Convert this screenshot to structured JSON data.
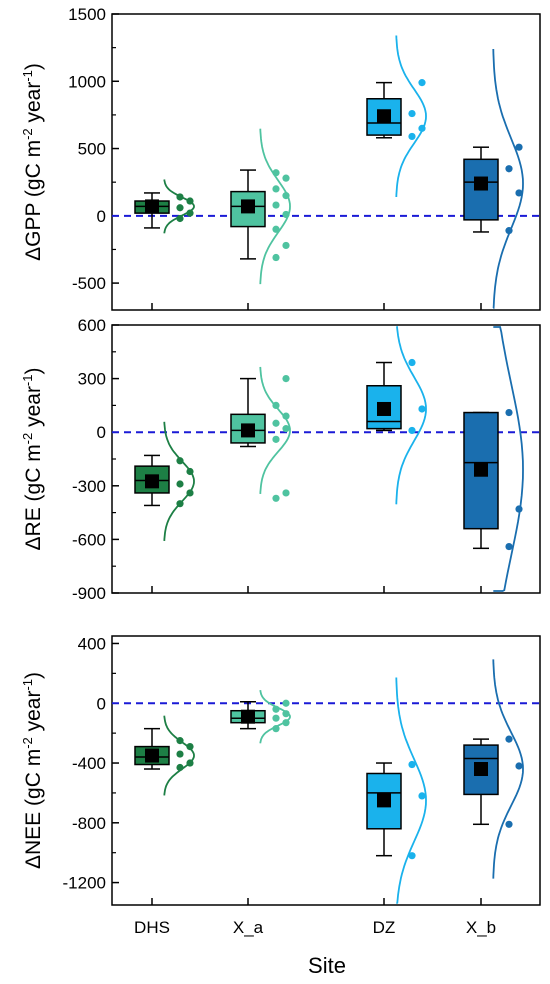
{
  "chart_data": {
    "type": "box",
    "xlabel": "Site",
    "categories": [
      "DHS",
      "X_a",
      "DZ",
      "X_b"
    ],
    "colors": {
      "DHS": {
        "fill": "#1d7f45",
        "line": "#1d7f45"
      },
      "X_a": {
        "fill": "#4fc3a0",
        "line": "#4fc3a0"
      },
      "DZ": {
        "fill": "#1ab2ec",
        "line": "#1ab2ec"
      },
      "X_b": {
        "fill": "#1a6eaf",
        "line": "#1a6eaf"
      }
    },
    "reference_line": {
      "y": 0,
      "style": "dashed",
      "color": "#1a1ad6"
    },
    "panels": [
      {
        "ylabel_parts": [
          "ΔGPP (gC m",
          "-2",
          " year",
          "-1",
          ")"
        ],
        "ylim": [
          -700,
          1500
        ],
        "yticks": [
          -500,
          0,
          500,
          1000,
          1500
        ],
        "ytick_labels": [
          "-500",
          "0",
          "500",
          "1000",
          "1500"
        ],
        "boxes": [
          {
            "site": "DHS",
            "whisker_low": -90,
            "q1": 20,
            "median": 70,
            "q3": 110,
            "whisker_high": 170,
            "mean": 70,
            "points": [
              -20,
              20,
              60,
              110,
              140
            ]
          },
          {
            "site": "X_a",
            "whisker_low": -320,
            "q1": -80,
            "median": 70,
            "q3": 180,
            "whisker_high": 340,
            "mean": 70,
            "points": [
              -310,
              -220,
              -100,
              10,
              80,
              150,
              200,
              280,
              320
            ]
          },
          {
            "site": "DZ",
            "whisker_low": 580,
            "q1": 600,
            "median": 690,
            "q3": 870,
            "whisker_high": 990,
            "mean": 740,
            "points": [
              590,
              650,
              760,
              990
            ]
          },
          {
            "site": "X_b",
            "whisker_low": -120,
            "q1": -30,
            "median": 250,
            "q3": 420,
            "whisker_high": 510,
            "mean": 240,
            "points": [
              -110,
              170,
              350,
              510
            ]
          }
        ]
      },
      {
        "ylabel_parts": [
          "ΔRE (gC m",
          "-2",
          " year",
          "-1",
          ")"
        ],
        "ylim": [
          -900,
          600
        ],
        "yticks": [
          -900,
          -600,
          -300,
          0,
          300,
          600
        ],
        "ytick_labels": [
          "-900",
          "-600",
          "-300",
          "0",
          "300",
          "600"
        ],
        "boxes": [
          {
            "site": "DHS",
            "whisker_low": -410,
            "q1": -340,
            "median": -270,
            "q3": -190,
            "whisker_high": -130,
            "mean": -275,
            "points": [
              -400,
              -340,
              -290,
              -220,
              -160
            ]
          },
          {
            "site": "X_a",
            "whisker_low": -80,
            "q1": -60,
            "median": 10,
            "q3": 100,
            "whisker_high": 300,
            "mean": 10,
            "points": [
              -370,
              -340,
              -40,
              20,
              50,
              90,
              150,
              300
            ]
          },
          {
            "site": "DZ",
            "whisker_low": 10,
            "q1": 20,
            "median": 60,
            "q3": 260,
            "whisker_high": 390,
            "mean": 130,
            "points": [
              10,
              130,
              390
            ]
          },
          {
            "site": "X_b",
            "whisker_low": -650,
            "q1": -540,
            "median": -170,
            "q3": 110,
            "whisker_high": 110,
            "mean": -210,
            "points": [
              -640,
              -430,
              110
            ]
          }
        ]
      },
      {
        "ylabel_parts": [
          "ΔNEE (gC m",
          "-2",
          " year",
          "-1",
          ")"
        ],
        "ylim": [
          -1350,
          450
        ],
        "yticks": [
          -1200,
          -800,
          -400,
          0,
          400
        ],
        "ytick_labels": [
          "-1200",
          "-800",
          "-400",
          "0",
          "400"
        ],
        "boxes": [
          {
            "site": "DHS",
            "whisker_low": -440,
            "q1": -410,
            "median": -360,
            "q3": -290,
            "whisker_high": -170,
            "mean": -350,
            "points": [
              -430,
              -400,
              -340,
              -290,
              -250
            ]
          },
          {
            "site": "X_a",
            "whisker_low": -170,
            "q1": -130,
            "median": -100,
            "q3": -50,
            "whisker_high": 10,
            "mean": -90,
            "points": [
              -170,
              -130,
              -100,
              -70,
              -40,
              0
            ]
          },
          {
            "site": "DZ",
            "whisker_low": -1020,
            "q1": -840,
            "median": -600,
            "q3": -470,
            "whisker_high": -400,
            "mean": -650,
            "points": [
              -1020,
              -620,
              -410
            ]
          },
          {
            "site": "X_b",
            "whisker_low": -810,
            "q1": -610,
            "median": -370,
            "q3": -280,
            "whisker_high": -240,
            "mean": -440,
            "points": [
              -810,
              -420,
              -240
            ]
          }
        ]
      }
    ]
  }
}
